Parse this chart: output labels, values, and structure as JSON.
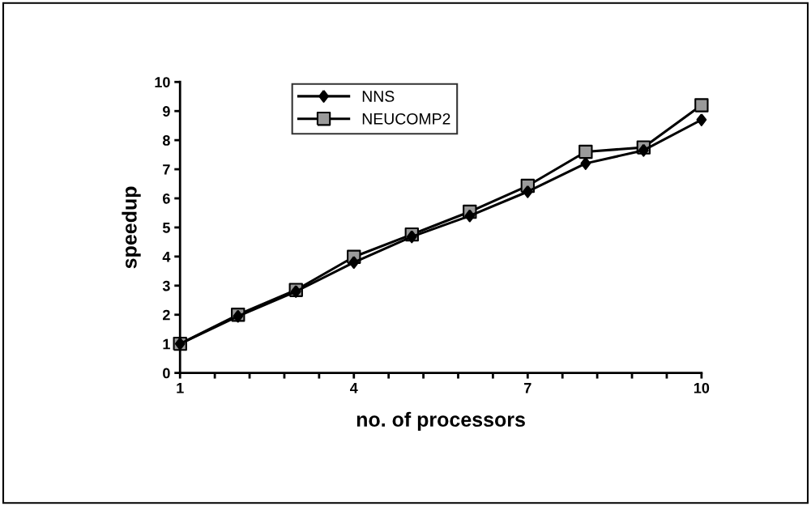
{
  "chart_data": {
    "type": "line",
    "xlabel": "no. of processors",
    "ylabel": "speedup",
    "x": [
      1,
      2,
      3,
      4,
      5,
      6,
      7,
      8,
      9,
      10
    ],
    "series": [
      {
        "name": "NNS",
        "color": "#000000",
        "marker": "diamond",
        "values": [
          1,
          1.95,
          2.8,
          3.8,
          4.68,
          5.4,
          6.23,
          7.2,
          7.65,
          8.7
        ]
      },
      {
        "name": "NEUCOMP2",
        "color": "#9a9a9a",
        "marker": "square",
        "values": [
          1,
          2.0,
          2.85,
          3.99,
          4.76,
          5.54,
          6.43,
          7.6,
          7.75,
          9.2
        ]
      }
    ],
    "xlim": [
      1,
      10
    ],
    "ylim": [
      0,
      10
    ],
    "xticks": [
      1,
      {
        "value": 1.6,
        "label": null
      },
      {
        "value": 2.2,
        "label": null
      },
      {
        "value": 2.8,
        "label": null
      },
      {
        "value": 3.4,
        "label": null
      },
      4,
      {
        "value": 4.6,
        "label": null
      },
      {
        "value": 5.2,
        "label": null
      },
      {
        "value": 5.8,
        "label": null
      },
      {
        "value": 6.4,
        "label": null
      },
      7,
      {
        "value": 7.6,
        "label": null
      },
      {
        "value": 8.2,
        "label": null
      },
      {
        "value": 8.8,
        "label": null
      },
      {
        "value": 9.4,
        "label": null
      },
      10
    ],
    "yticks": [
      0,
      1,
      2,
      3,
      4,
      5,
      6,
      7,
      8,
      9,
      10
    ],
    "grid": false,
    "legend": "top left",
    "line_style": "solid"
  }
}
